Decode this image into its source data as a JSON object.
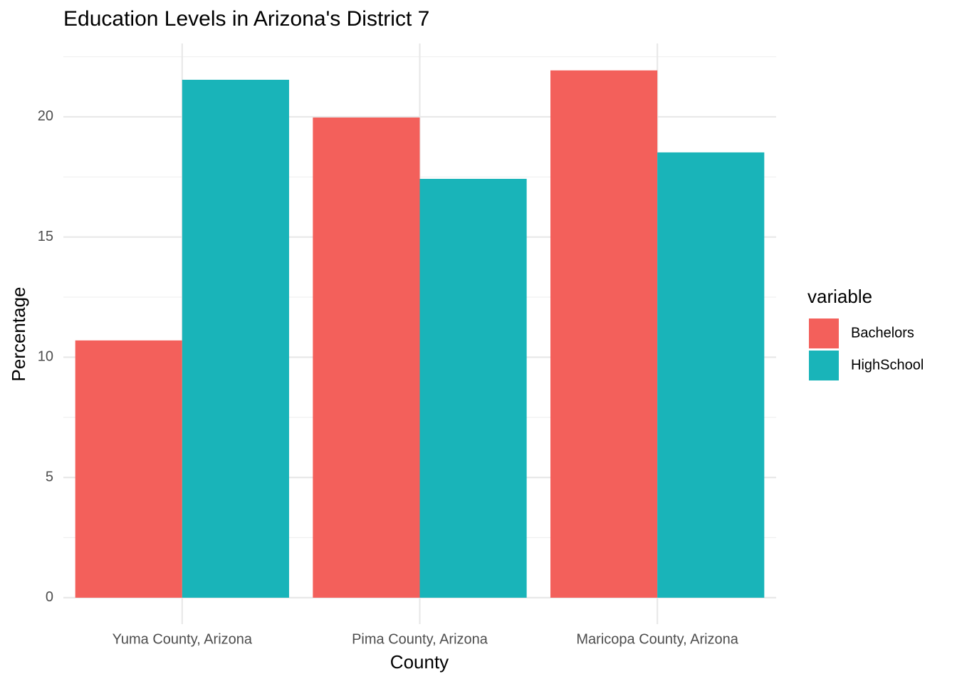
{
  "chart_data": {
    "type": "bar",
    "title": "Education Levels in Arizona's District 7",
    "x_label": "County",
    "y_label": "Percentage",
    "categories": [
      "Yuma County, Arizona",
      "Pima County, Arizona",
      "Maricopa County, Arizona"
    ],
    "series": [
      {
        "name": "Bachelors",
        "color": "#F3605B",
        "values": [
          10.7,
          19.97,
          21.93
        ]
      },
      {
        "name": "HighSchool",
        "color": "#19B4B9",
        "values": [
          21.54,
          17.42,
          18.52
        ]
      }
    ],
    "legend_title": "variable",
    "legend": "right",
    "ylim": [
      -1.1,
      23.05
    ],
    "yticks": [
      0,
      5,
      10,
      15,
      20
    ],
    "yminor": [
      2.5,
      7.5,
      12.5,
      17.5,
      22.5
    ],
    "grid": true
  }
}
